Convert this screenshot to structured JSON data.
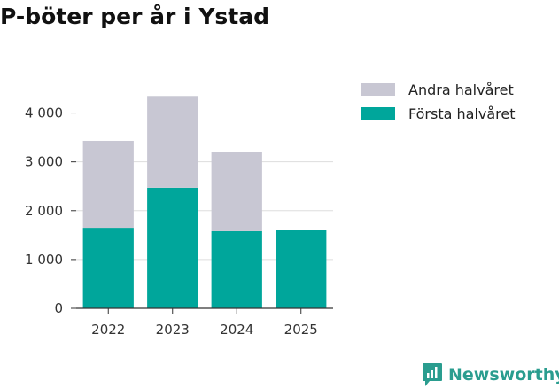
{
  "chart_data": {
    "type": "bar",
    "stacked": true,
    "title": "P-böter per år i Ystad",
    "categories": [
      "2022",
      "2023",
      "2024",
      "2025"
    ],
    "series": [
      {
        "name": "Första halvåret",
        "color": "#00a69b",
        "values": [
          1650,
          2470,
          1580,
          1610
        ]
      },
      {
        "name": "Andra halvåret",
        "color": "#c8c7d3",
        "values": [
          1780,
          1880,
          1630,
          0
        ]
      }
    ],
    "legend_order": [
      "Andra halvåret",
      "Första halvåret"
    ],
    "ylim": [
      0,
      4500
    ],
    "yticks": [
      0,
      1000,
      2000,
      3000,
      4000
    ],
    "ytick_labels": [
      "0",
      "1 000",
      "2 000",
      "3 000",
      "4 000"
    ],
    "grid": true,
    "legend_position": "right"
  },
  "brand": {
    "name": "Newsworthy",
    "color": "#2a9d8f"
  }
}
